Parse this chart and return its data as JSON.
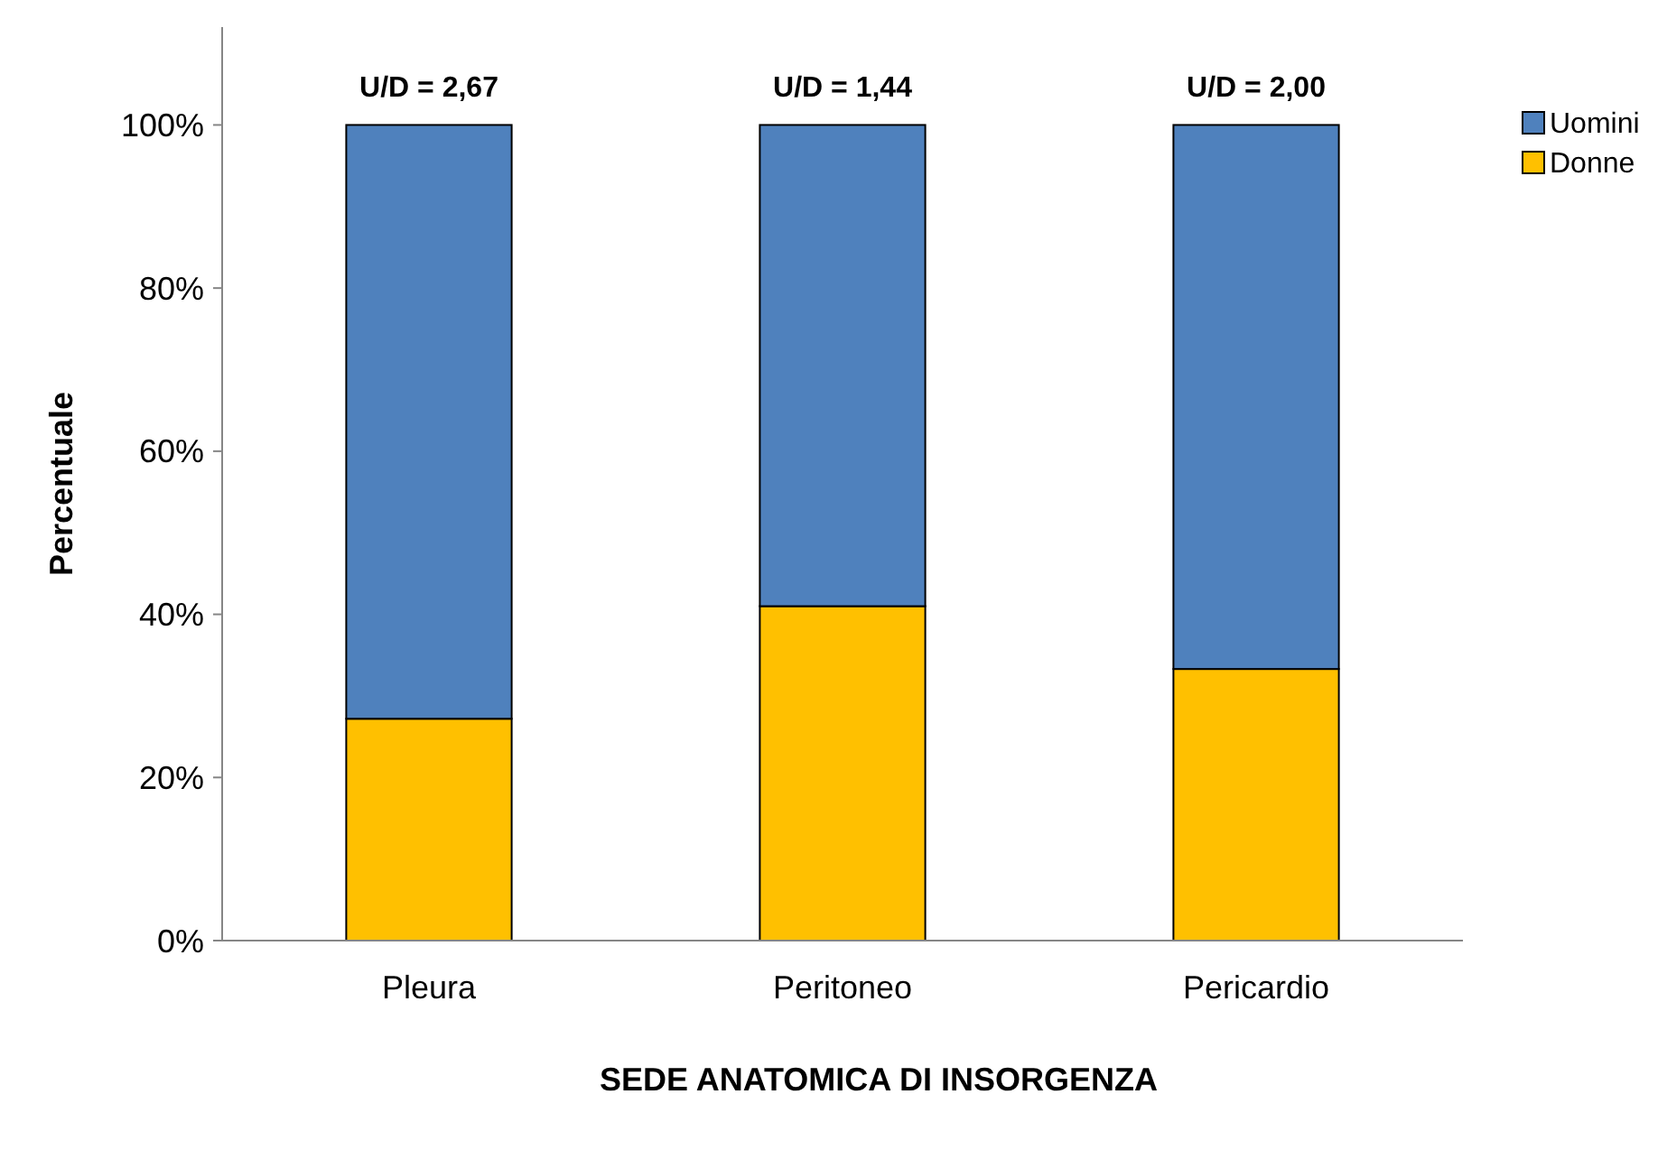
{
  "chart_data": {
    "type": "bar",
    "stacked": true,
    "xlabel": "SEDE ANATOMICA DI INSORGENZA",
    "ylabel": "Percentuale",
    "categories": [
      "Pleura",
      "Peritoneo",
      "Pericardio"
    ],
    "series": [
      {
        "name": "Donne",
        "color": "#ffc000",
        "values": [
          27.2,
          41.0,
          33.3
        ]
      },
      {
        "name": "Uomini",
        "color": "#4f81bd",
        "values": [
          72.8,
          59.0,
          66.7
        ]
      }
    ],
    "ylim": [
      0,
      112
    ],
    "yticks": [
      {
        "value": 0,
        "label": "0%"
      },
      {
        "value": 20,
        "label": "20%"
      },
      {
        "value": 40,
        "label": "40%"
      },
      {
        "value": 60,
        "label": "60%"
      },
      {
        "value": 80,
        "label": "80%"
      },
      {
        "value": 100,
        "label": "100%"
      }
    ],
    "annotations": [
      "U/D = 2,67",
      "U/D = 1,44",
      "U/D = 2,00"
    ],
    "grid": false,
    "legend": "top right"
  }
}
